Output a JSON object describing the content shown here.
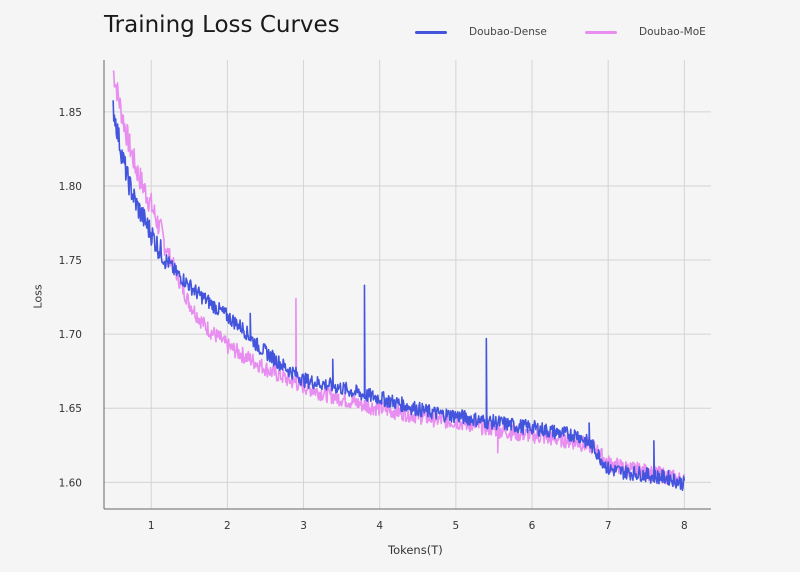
{
  "chart_data": {
    "type": "line",
    "title": "Training Loss Curves",
    "xlabel": "Tokens(T)",
    "ylabel": "Loss",
    "xlim": [
      0.38,
      8.35
    ],
    "ylim": [
      1.582,
      1.885
    ],
    "x_ticks": [
      "1",
      "2",
      "3",
      "4",
      "5",
      "6",
      "7",
      "8"
    ],
    "y_ticks": [
      "1.85",
      "1.80",
      "1.75",
      "1.70",
      "1.65",
      "1.60"
    ],
    "grid": true,
    "legend_position": "top-right",
    "series": [
      {
        "name": "Doubao-Dense",
        "color": "#4455dd",
        "x": [
          0.5,
          0.6,
          0.7,
          0.8,
          0.9,
          1.0,
          1.1,
          1.2,
          1.3,
          1.4,
          1.5,
          1.6,
          1.7,
          1.8,
          1.9,
          2.0,
          2.1,
          2.2,
          2.3,
          2.4,
          2.5,
          2.6,
          2.7,
          2.8,
          2.9,
          3.0,
          3.2,
          3.4,
          3.6,
          3.8,
          4.0,
          4.2,
          4.4,
          4.6,
          4.8,
          5.0,
          5.2,
          5.4,
          5.6,
          5.8,
          6.0,
          6.2,
          6.4,
          6.6,
          6.8,
          7.0,
          7.2,
          7.4,
          7.6,
          7.8,
          8.0
        ],
        "values": [
          1.853,
          1.825,
          1.803,
          1.788,
          1.778,
          1.768,
          1.758,
          1.75,
          1.743,
          1.738,
          1.733,
          1.728,
          1.724,
          1.72,
          1.716,
          1.712,
          1.708,
          1.704,
          1.698,
          1.692,
          1.688,
          1.684,
          1.68,
          1.676,
          1.673,
          1.669,
          1.667,
          1.665,
          1.662,
          1.659,
          1.657,
          1.654,
          1.651,
          1.648,
          1.646,
          1.645,
          1.643,
          1.641,
          1.64,
          1.638,
          1.637,
          1.635,
          1.633,
          1.632,
          1.624,
          1.609,
          1.607,
          1.606,
          1.604,
          1.603,
          1.599
        ],
        "spikes": [
          [
            2.3,
            1.714
          ],
          [
            3.38,
            1.683
          ],
          [
            3.8,
            1.733
          ],
          [
            5.4,
            1.697
          ],
          [
            6.75,
            1.64
          ],
          [
            7.6,
            1.628
          ]
        ]
      },
      {
        "name": "Doubao-MoE",
        "color": "#e88ef0",
        "x": [
          0.5,
          0.6,
          0.7,
          0.8,
          0.9,
          1.0,
          1.1,
          1.2,
          1.3,
          1.4,
          1.5,
          1.6,
          1.7,
          1.8,
          1.9,
          2.0,
          2.1,
          2.2,
          2.3,
          2.4,
          2.5,
          2.6,
          2.7,
          2.8,
          2.9,
          3.0,
          3.2,
          3.4,
          3.6,
          3.8,
          4.0,
          4.2,
          4.4,
          4.6,
          4.8,
          5.0,
          5.2,
          5.4,
          5.6,
          5.8,
          6.0,
          6.2,
          6.4,
          6.6,
          6.8,
          7.0,
          7.2,
          7.4,
          7.6,
          7.8,
          8.0
        ],
        "values": [
          1.878,
          1.852,
          1.83,
          1.812,
          1.799,
          1.787,
          1.773,
          1.758,
          1.745,
          1.732,
          1.721,
          1.713,
          1.706,
          1.701,
          1.697,
          1.692,
          1.689,
          1.686,
          1.683,
          1.68,
          1.677,
          1.674,
          1.672,
          1.669,
          1.667,
          1.665,
          1.661,
          1.658,
          1.655,
          1.652,
          1.65,
          1.648,
          1.646,
          1.644,
          1.642,
          1.641,
          1.639,
          1.637,
          1.635,
          1.633,
          1.632,
          1.63,
          1.629,
          1.627,
          1.624,
          1.613,
          1.61,
          1.608,
          1.606,
          1.604,
          1.601
        ],
        "spikes": [
          [
            2.9,
            1.724
          ],
          [
            5.55,
            1.62
          ]
        ]
      }
    ]
  }
}
